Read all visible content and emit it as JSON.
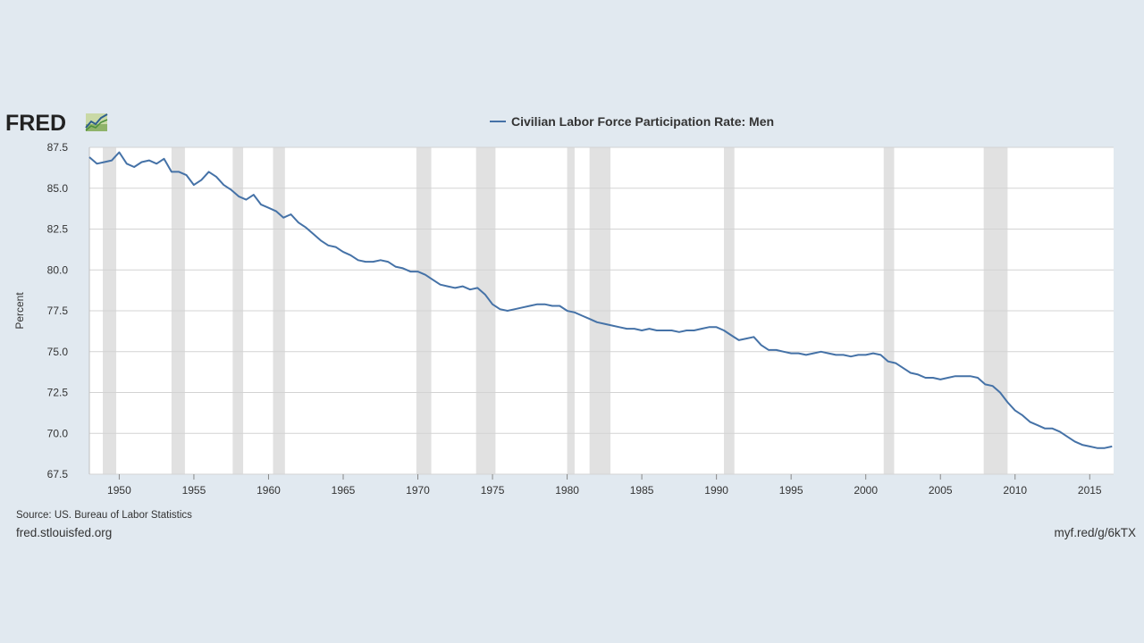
{
  "brand": {
    "logo_text": "FRED",
    "logo_icon": "line-graph-icon"
  },
  "footer": {
    "source": "Source: US. Bureau of Labor Statistics",
    "site": "fred.stlouisfed.org",
    "short_link": "myf.red/g/6kTX"
  },
  "colors": {
    "background": "#e1e9f0",
    "series": "#4572a7",
    "recession": "#e1e1e1",
    "grid": "#d3d3d3"
  },
  "chart_data": {
    "type": "line",
    "ylabel": "Percent",
    "xlabel": "",
    "xlim": [
      1948.0,
      2016.6
    ],
    "ylim": [
      67.5,
      87.5
    ],
    "x_ticks": [
      "1950",
      "1955",
      "1960",
      "1965",
      "1970",
      "1975",
      "1980",
      "1985",
      "1990",
      "1995",
      "2000",
      "2005",
      "2010",
      "2015"
    ],
    "y_ticks": [
      "67.5",
      "70.0",
      "72.5",
      "75.0",
      "77.5",
      "80.0",
      "82.5",
      "85.0",
      "87.5"
    ],
    "grid": true,
    "legend_position": "top-center",
    "recessions": [
      [
        1948.9,
        1949.8
      ],
      [
        1953.5,
        1954.4
      ],
      [
        1957.6,
        1958.3
      ],
      [
        1960.3,
        1961.1
      ],
      [
        1969.9,
        1970.9
      ],
      [
        1973.9,
        1975.2
      ],
      [
        1980.0,
        1980.5
      ],
      [
        1981.5,
        1982.9
      ],
      [
        1990.5,
        1991.2
      ],
      [
        2001.2,
        2001.9
      ],
      [
        2007.9,
        2009.5
      ]
    ],
    "series": [
      {
        "name": "Civilian Labor Force Participation Rate: Men",
        "x": [
          1948.0,
          1948.5,
          1949.0,
          1949.5,
          1950.0,
          1950.5,
          1951.0,
          1951.5,
          1952.0,
          1952.5,
          1953.0,
          1953.5,
          1954.0,
          1954.5,
          1955.0,
          1955.5,
          1956.0,
          1956.5,
          1957.0,
          1957.5,
          1958.0,
          1958.5,
          1959.0,
          1959.5,
          1960.0,
          1960.5,
          1961.0,
          1961.5,
          1962.0,
          1962.5,
          1963.0,
          1963.5,
          1964.0,
          1964.5,
          1965.0,
          1965.5,
          1966.0,
          1966.5,
          1967.0,
          1967.5,
          1968.0,
          1968.5,
          1969.0,
          1969.5,
          1970.0,
          1970.5,
          1971.0,
          1971.5,
          1972.0,
          1972.5,
          1973.0,
          1973.5,
          1974.0,
          1974.5,
          1975.0,
          1975.5,
          1976.0,
          1976.5,
          1977.0,
          1977.5,
          1978.0,
          1978.5,
          1979.0,
          1979.5,
          1980.0,
          1980.5,
          1981.0,
          1981.5,
          1982.0,
          1982.5,
          1983.0,
          1983.5,
          1984.0,
          1984.5,
          1985.0,
          1985.5,
          1986.0,
          1986.5,
          1987.0,
          1987.5,
          1988.0,
          1988.5,
          1989.0,
          1989.5,
          1990.0,
          1990.5,
          1991.0,
          1991.5,
          1992.0,
          1992.5,
          1993.0,
          1993.5,
          1994.0,
          1994.5,
          1995.0,
          1995.5,
          1996.0,
          1996.5,
          1997.0,
          1997.5,
          1998.0,
          1998.5,
          1999.0,
          1999.5,
          2000.0,
          2000.5,
          2001.0,
          2001.5,
          2002.0,
          2002.5,
          2003.0,
          2003.5,
          2004.0,
          2004.5,
          2005.0,
          2005.5,
          2006.0,
          2006.5,
          2007.0,
          2007.5,
          2008.0,
          2008.5,
          2009.0,
          2009.5,
          2010.0,
          2010.5,
          2011.0,
          2011.5,
          2012.0,
          2012.5,
          2013.0,
          2013.5,
          2014.0,
          2014.5,
          2015.0,
          2015.5,
          2016.0,
          2016.5
        ],
        "values": [
          86.9,
          86.5,
          86.6,
          86.7,
          87.2,
          86.5,
          86.3,
          86.6,
          86.7,
          86.5,
          86.8,
          86.0,
          86.0,
          85.8,
          85.2,
          85.5,
          86.0,
          85.7,
          85.2,
          84.9,
          84.5,
          84.3,
          84.6,
          84.0,
          83.8,
          83.6,
          83.2,
          83.4,
          82.9,
          82.6,
          82.2,
          81.8,
          81.5,
          81.4,
          81.1,
          80.9,
          80.6,
          80.5,
          80.5,
          80.6,
          80.5,
          80.2,
          80.1,
          79.9,
          79.9,
          79.7,
          79.4,
          79.1,
          79.0,
          78.9,
          79.0,
          78.8,
          78.9,
          78.5,
          77.9,
          77.6,
          77.5,
          77.6,
          77.7,
          77.8,
          77.9,
          77.9,
          77.8,
          77.8,
          77.5,
          77.4,
          77.2,
          77.0,
          76.8,
          76.7,
          76.6,
          76.5,
          76.4,
          76.4,
          76.3,
          76.4,
          76.3,
          76.3,
          76.3,
          76.2,
          76.3,
          76.3,
          76.4,
          76.5,
          76.5,
          76.3,
          76.0,
          75.7,
          75.8,
          75.9,
          75.4,
          75.1,
          75.1,
          75.0,
          74.9,
          74.9,
          74.8,
          74.9,
          75.0,
          74.9,
          74.8,
          74.8,
          74.7,
          74.8,
          74.8,
          74.9,
          74.8,
          74.4,
          74.3,
          74.0,
          73.7,
          73.6,
          73.4,
          73.4,
          73.3,
          73.4,
          73.5,
          73.5,
          73.5,
          73.4,
          73.0,
          72.9,
          72.5,
          71.9,
          71.4,
          71.1,
          70.7,
          70.5,
          70.3,
          70.3,
          70.1,
          69.8,
          69.5,
          69.3,
          69.2,
          69.1,
          69.1,
          69.2
        ]
      }
    ]
  }
}
